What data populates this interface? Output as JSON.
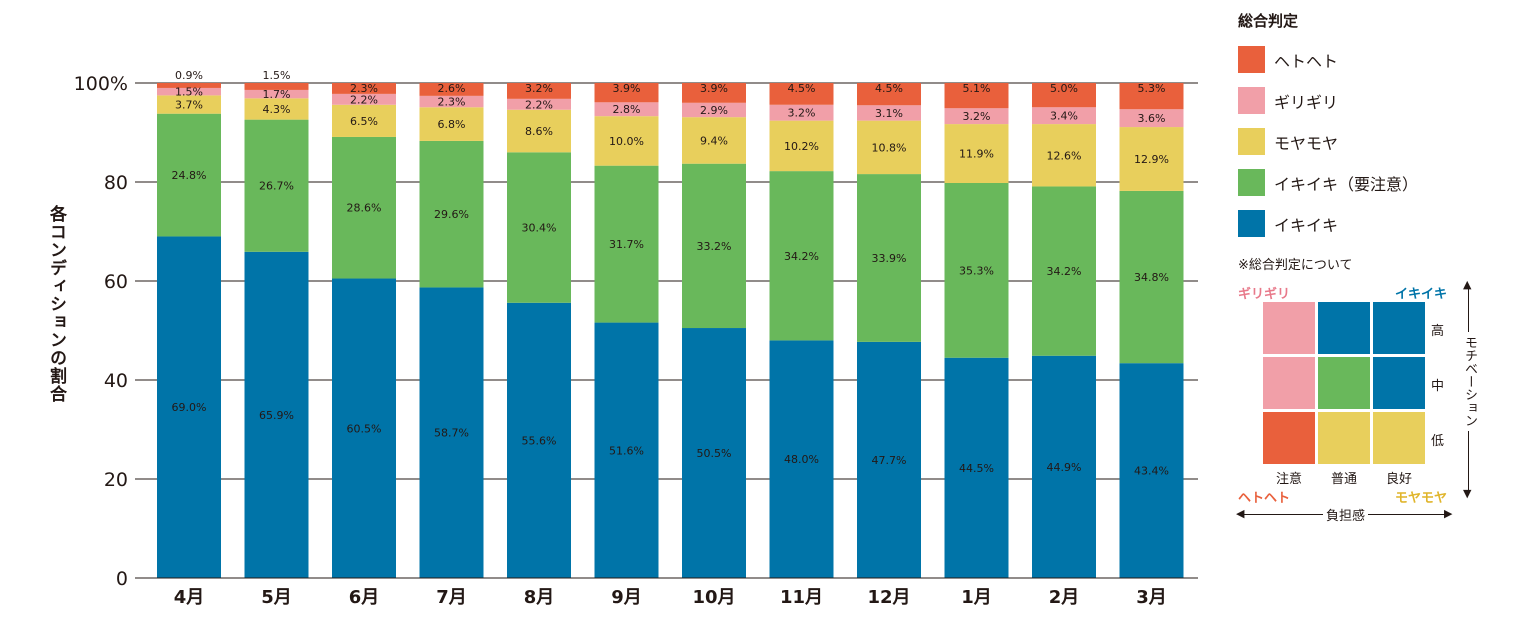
{
  "chart_data": {
    "type": "bar",
    "stacked": true,
    "ylabel": "各コンディションの割合",
    "ylim": [
      0,
      100
    ],
    "yticks": [
      "0",
      "20",
      "40",
      "60",
      "80",
      "100%"
    ],
    "grid": true,
    "categories": [
      "4月",
      "5月",
      "6月",
      "7月",
      "8月",
      "9月",
      "10月",
      "11月",
      "12月",
      "1月",
      "2月",
      "3月"
    ],
    "series": [
      {
        "name": "イキイキ",
        "color": "#0074a8",
        "values": [
          69.0,
          65.9,
          60.5,
          58.7,
          55.6,
          51.6,
          50.5,
          48.0,
          47.7,
          44.5,
          44.9,
          43.4
        ]
      },
      {
        "name": "イキイキ（要注意）",
        "color": "#69b85b",
        "values": [
          24.8,
          26.7,
          28.6,
          29.6,
          30.4,
          31.7,
          33.2,
          34.2,
          33.9,
          35.3,
          34.2,
          34.8
        ]
      },
      {
        "name": "モヤモヤ",
        "color": "#e8cf5c",
        "values": [
          3.7,
          4.3,
          6.5,
          6.8,
          8.6,
          10.0,
          9.4,
          10.2,
          10.8,
          11.9,
          12.6,
          12.9
        ]
      },
      {
        "name": "ギリギリ",
        "color": "#f19fa8",
        "values": [
          1.5,
          1.7,
          2.2,
          2.3,
          2.2,
          2.8,
          2.9,
          3.2,
          3.1,
          3.2,
          3.4,
          3.6
        ]
      },
      {
        "name": "ヘトヘト",
        "color": "#e9603c",
        "values": [
          0.9,
          1.5,
          2.3,
          2.6,
          3.2,
          3.9,
          3.9,
          4.5,
          4.5,
          5.1,
          5.0,
          5.3
        ]
      }
    ],
    "legend_position": "right",
    "legend_title": "総合判定"
  },
  "legend": {
    "title": "総合判定",
    "items": [
      {
        "label": "ヘトヘト",
        "color": "#e9603c"
      },
      {
        "label": "ギリギリ",
        "color": "#f19fa8"
      },
      {
        "label": "モヤモヤ",
        "color": "#e8cf5c"
      },
      {
        "label": "イキイキ（要注意）",
        "color": "#69b85b"
      },
      {
        "label": "イキイキ",
        "color": "#0074a8"
      }
    ]
  },
  "matrix": {
    "title": "※総合判定について",
    "top_left": "ギリギリ",
    "top_right": "イキイキ",
    "bottom_left": "ヘトヘト",
    "bottom_right": "モヤモヤ",
    "rows": [
      "高",
      "中",
      "低"
    ],
    "cols": [
      "注意",
      "普通",
      "良好"
    ],
    "y_axis": "モチベーション",
    "x_axis": "負担感",
    "cells": [
      [
        "#f19fa8",
        "#0074a8",
        "#0074a8"
      ],
      [
        "#f19fa8",
        "#69b85b",
        "#0074a8"
      ],
      [
        "#e9603c",
        "#e8cf5c",
        "#e8cf5c"
      ]
    ]
  }
}
